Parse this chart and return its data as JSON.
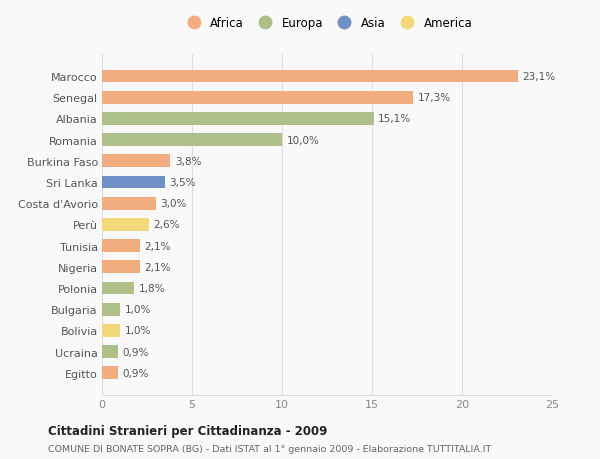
{
  "countries": [
    "Marocco",
    "Senegal",
    "Albania",
    "Romania",
    "Burkina Faso",
    "Sri Lanka",
    "Costa d'Avorio",
    "Perù",
    "Tunisia",
    "Nigeria",
    "Polonia",
    "Bulgaria",
    "Bolivia",
    "Ucraina",
    "Egitto"
  ],
  "values": [
    23.1,
    17.3,
    15.1,
    10.0,
    3.8,
    3.5,
    3.0,
    2.6,
    2.1,
    2.1,
    1.8,
    1.0,
    1.0,
    0.9,
    0.9
  ],
  "labels": [
    "23,1%",
    "17,3%",
    "15,1%",
    "10,0%",
    "3,8%",
    "3,5%",
    "3,0%",
    "2,6%",
    "2,1%",
    "2,1%",
    "1,8%",
    "1,0%",
    "1,0%",
    "0,9%",
    "0,9%"
  ],
  "continents": [
    "Africa",
    "Africa",
    "Europa",
    "Europa",
    "Africa",
    "Asia",
    "Africa",
    "America",
    "Africa",
    "Africa",
    "Europa",
    "Europa",
    "America",
    "Europa",
    "Africa"
  ],
  "continent_colors": {
    "Africa": "#F2AE7E",
    "Europa": "#AEBF8A",
    "Asia": "#7090C8",
    "America": "#F2D878"
  },
  "legend_order": [
    "Africa",
    "Europa",
    "Asia",
    "America"
  ],
  "title": "Cittadini Stranieri per Cittadinanza - 2009",
  "subtitle": "COMUNE DI BONATE SOPRA (BG) - Dati ISTAT al 1° gennaio 2009 - Elaborazione TUTTITALIA.IT",
  "xlim": [
    0,
    25
  ],
  "xticks": [
    0,
    5,
    10,
    15,
    20,
    25
  ],
  "background_color": "#f9f9f9",
  "grid_color": "#dddddd",
  "bar_height": 0.6
}
